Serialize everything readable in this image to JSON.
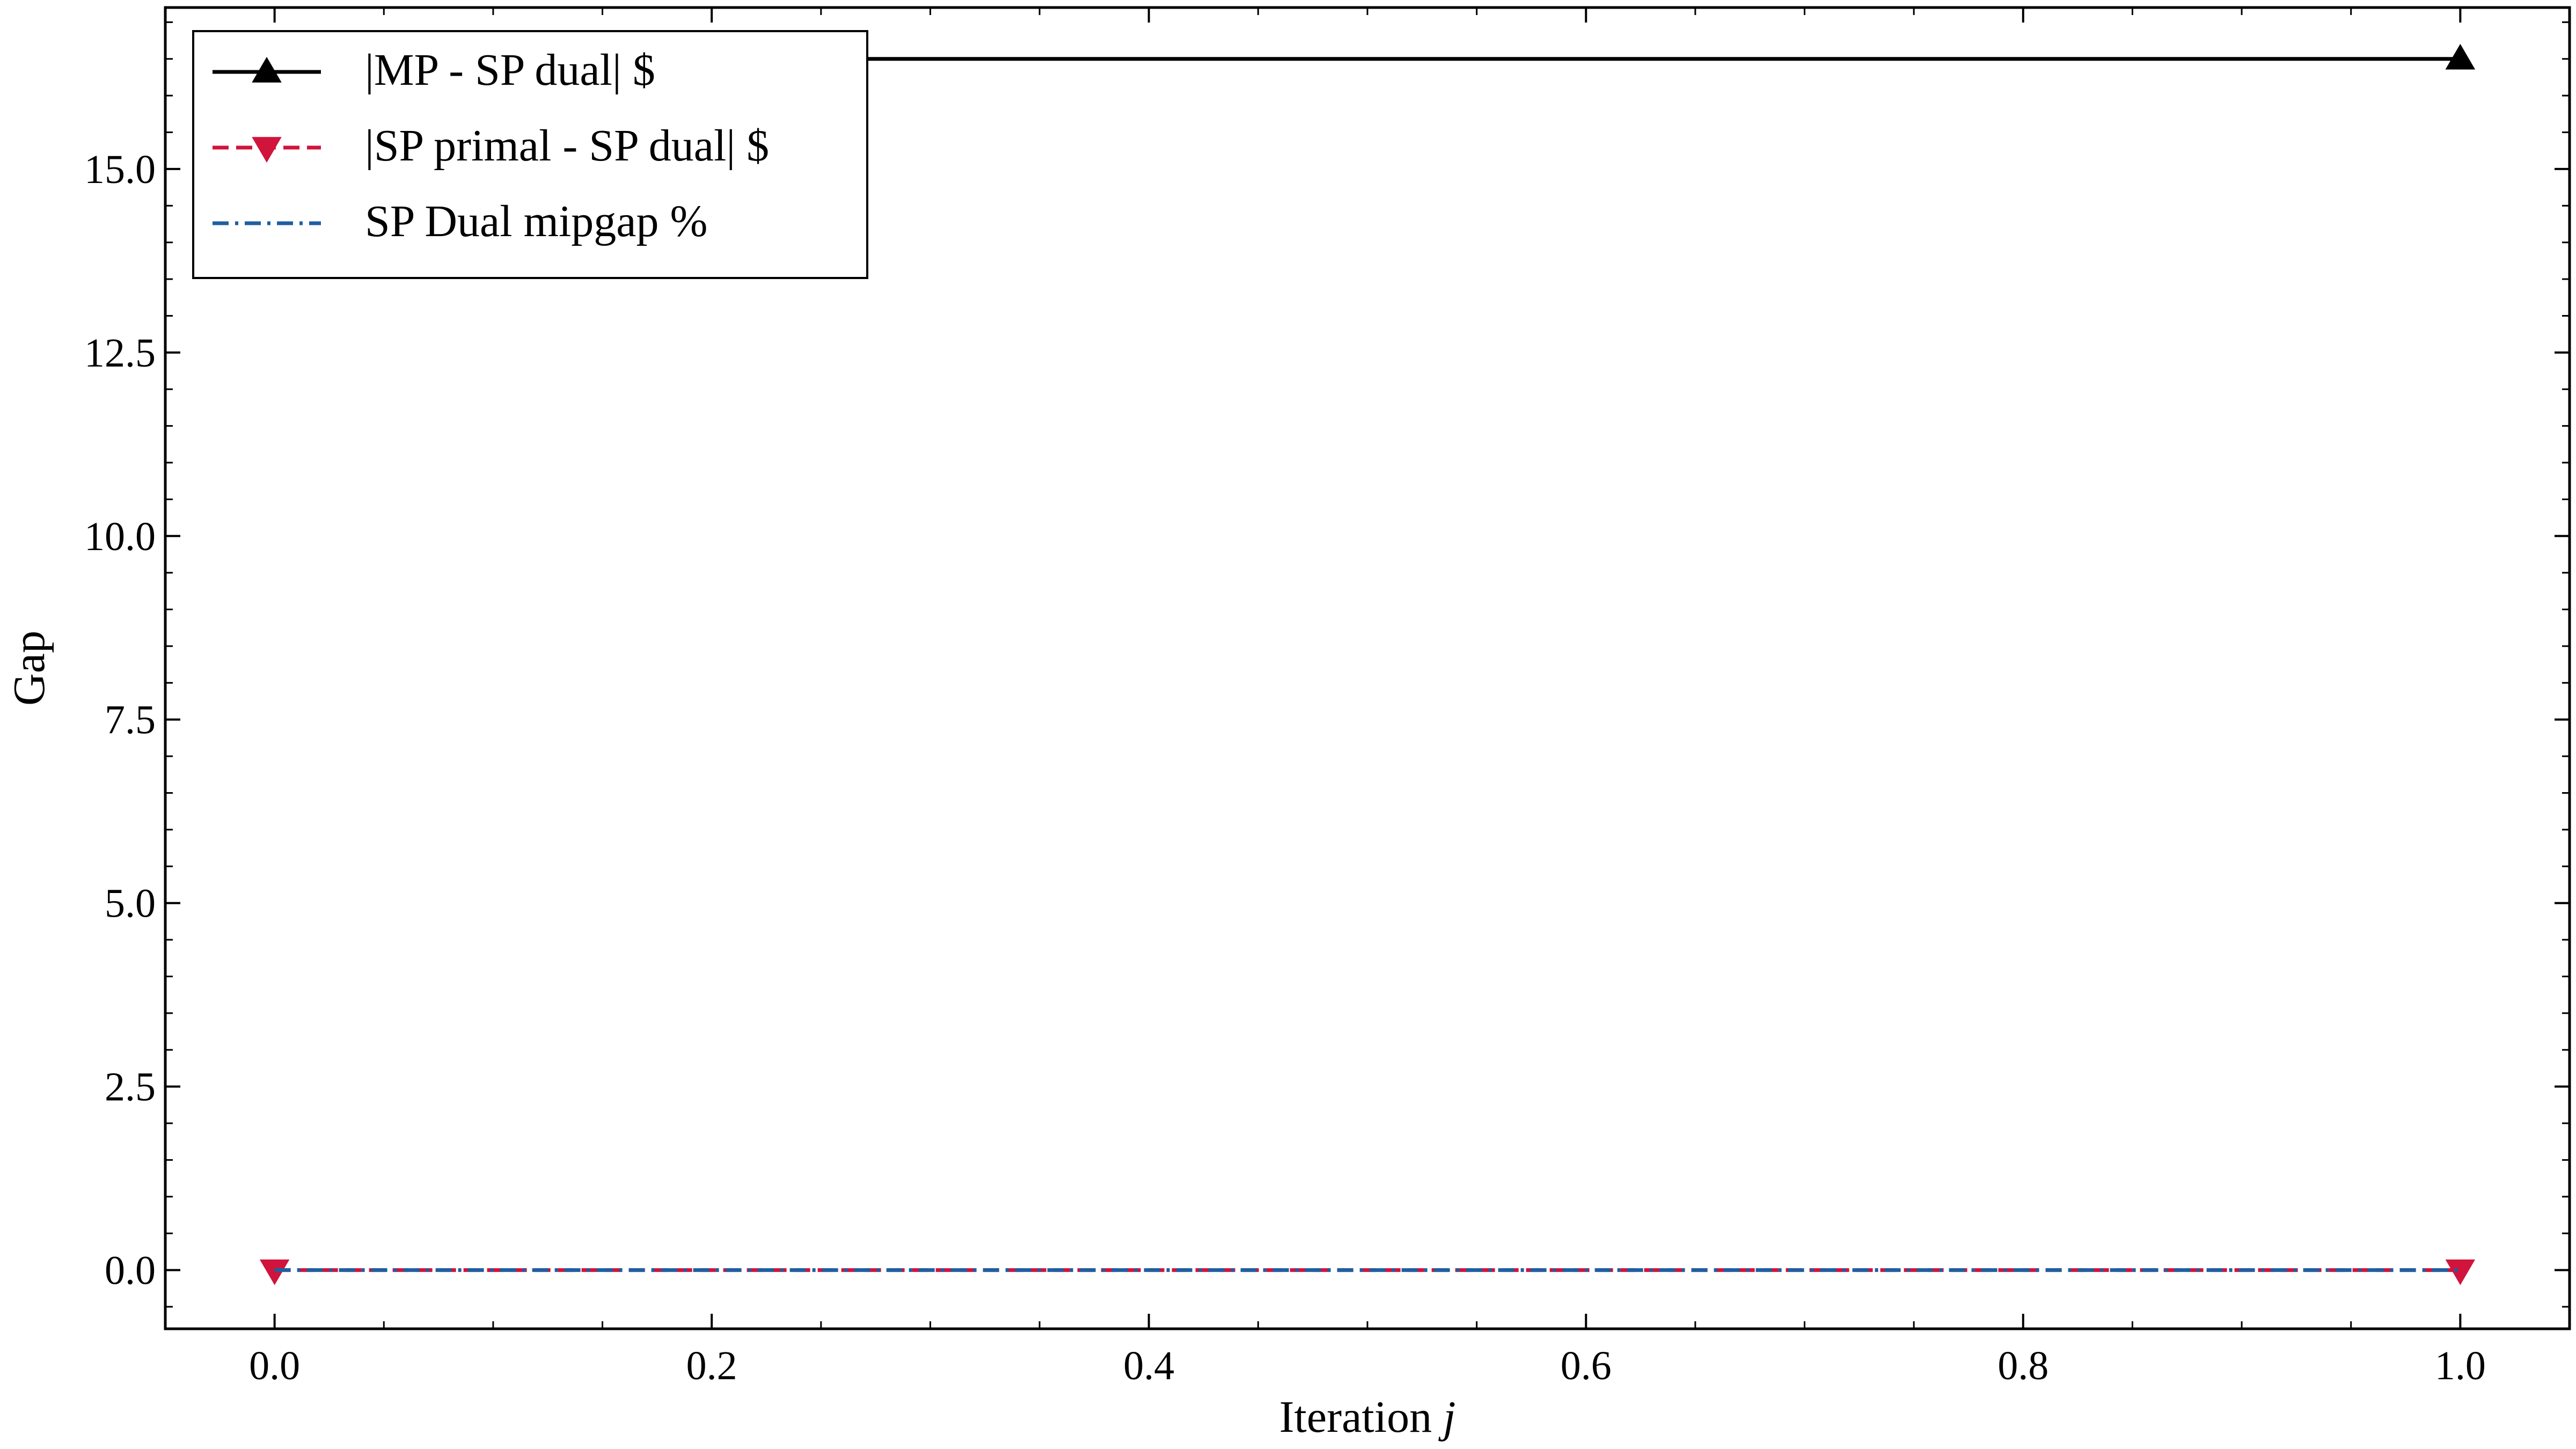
{
  "chart_data": {
    "type": "line",
    "title": "",
    "xlabel_prefix": "Iteration ",
    "xlabel_var": "j",
    "ylabel": "Gap",
    "xlim": [
      -0.05,
      1.05
    ],
    "ylim": [
      -0.8,
      17.2
    ],
    "xticks": [
      0.0,
      0.2,
      0.4,
      0.6,
      0.8,
      1.0
    ],
    "xtick_labels": [
      "0.0",
      "0.2",
      "0.4",
      "0.6",
      "0.8",
      "1.0"
    ],
    "yticks": [
      0.0,
      2.5,
      5.0,
      7.5,
      10.0,
      12.5,
      15.0
    ],
    "ytick_labels": [
      "0.0",
      "2.5",
      "5.0",
      "7.5",
      "10.0",
      "12.5",
      "15.0"
    ],
    "x": [
      0,
      1
    ],
    "series": [
      {
        "name": "|MP - SP dual| $",
        "values": [
          16.5,
          16.5
        ],
        "color": "#000000",
        "linestyle": "solid",
        "marker": "triangle-up"
      },
      {
        "name": "|SP primal - SP dual| $",
        "values": [
          0.0,
          0.0
        ],
        "color": "#d0143c",
        "linestyle": "dashed",
        "marker": "triangle-down"
      },
      {
        "name": "SP Dual mipgap %",
        "values": [
          0.0,
          0.0
        ],
        "color": "#1f5fa0",
        "linestyle": "dashdot",
        "marker": "none"
      }
    ],
    "legend": "top-left",
    "grid": false
  }
}
